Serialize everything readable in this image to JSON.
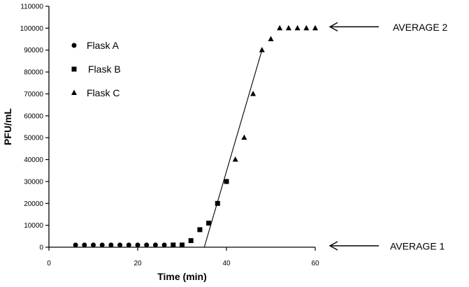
{
  "chart_data": {
    "type": "scatter",
    "xlabel": "Time (min)",
    "ylabel": "PFU/mL",
    "xlim": [
      0,
      60
    ],
    "ylim": [
      0,
      110000
    ],
    "x_ticks": [
      0,
      20,
      40,
      60
    ],
    "y_ticks": [
      0,
      10000,
      20000,
      30000,
      40000,
      50000,
      60000,
      70000,
      80000,
      90000,
      100000,
      110000
    ],
    "x_tick_labels": [
      "0",
      "20",
      "40",
      "60"
    ],
    "y_tick_labels": [
      "0",
      "10000",
      "20000",
      "30000",
      "40000",
      "50000",
      "60000",
      "70000",
      "80000",
      "90000",
      "100000",
      "110000"
    ],
    "grid": false,
    "legend_position": "top-left",
    "series": [
      {
        "name": "Flask A",
        "marker": "circle",
        "color": "#000000",
        "points": [
          [
            6,
            1000
          ],
          [
            8,
            1000
          ],
          [
            10,
            1000
          ],
          [
            12,
            1000
          ],
          [
            14,
            1000
          ],
          [
            16,
            1000
          ],
          [
            18,
            1000
          ],
          [
            20,
            1000
          ],
          [
            22,
            1000
          ],
          [
            24,
            1000
          ],
          [
            26,
            1000
          ]
        ]
      },
      {
        "name": "Flask B",
        "marker": "square",
        "color": "#000000",
        "points": [
          [
            28,
            1000
          ],
          [
            30,
            1000
          ],
          [
            32,
            3000
          ],
          [
            34,
            8000
          ],
          [
            36,
            11000
          ],
          [
            38,
            20000
          ],
          [
            40,
            30000
          ]
        ]
      },
      {
        "name": "Flask C",
        "marker": "triangle",
        "color": "#000000",
        "points": [
          [
            42,
            40000
          ],
          [
            44,
            50000
          ],
          [
            46,
            70000
          ],
          [
            48,
            90000
          ],
          [
            50,
            95000
          ],
          [
            52,
            100000
          ],
          [
            54,
            100000
          ],
          [
            56,
            100000
          ],
          [
            58,
            100000
          ],
          [
            60,
            100000
          ]
        ]
      }
    ],
    "fit_line": {
      "points": [
        [
          35,
          0
        ],
        [
          48,
          90000
        ]
      ]
    },
    "annotations": [
      {
        "text": "AVERAGE  2",
        "y": 100000,
        "arrow": "left"
      },
      {
        "text": "AVERAGE  1",
        "y": 0,
        "arrow": "left"
      }
    ]
  }
}
